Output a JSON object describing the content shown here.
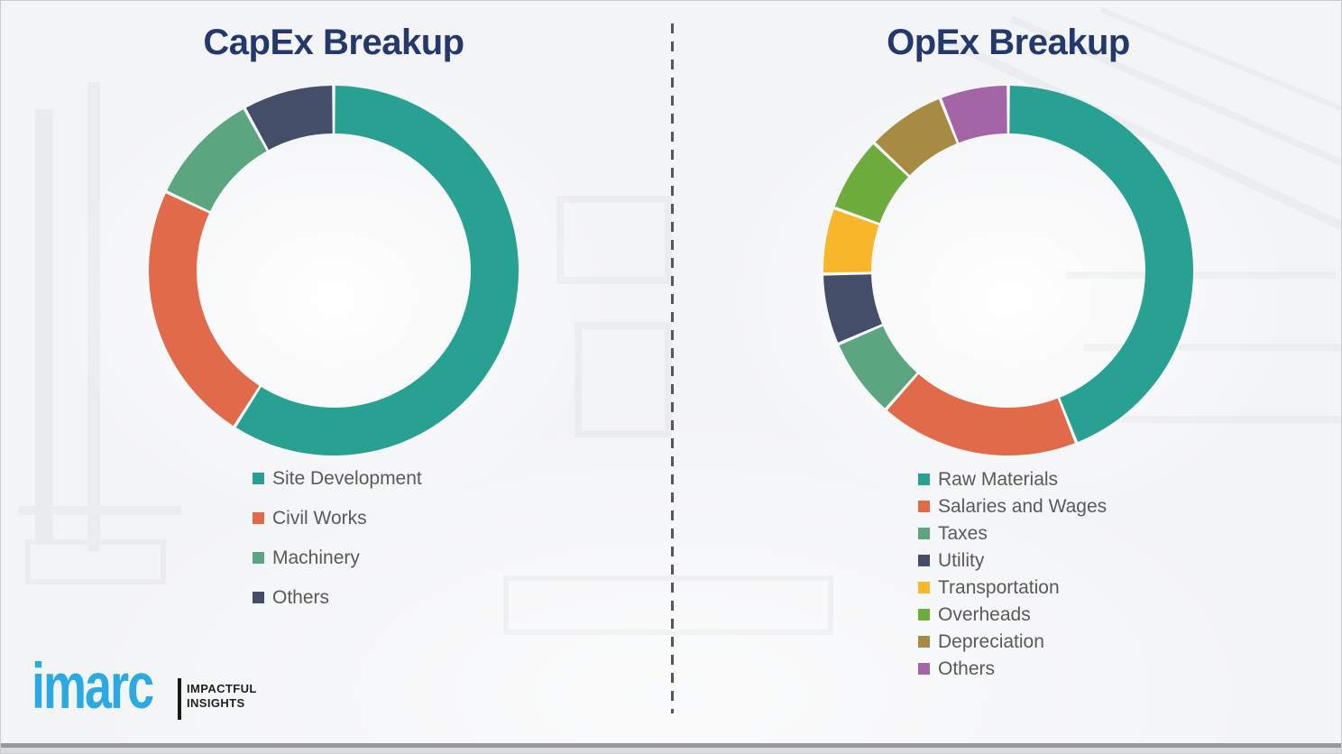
{
  "chart_data": [
    {
      "type": "pie",
      "subtype": "donut",
      "title": "CapEx Breakup",
      "labels": [
        "Site Development",
        "Civil Works",
        "Machinery",
        "Others"
      ],
      "values": [
        59,
        23,
        10,
        8
      ],
      "unit": "percent-estimated-from-arc-angles",
      "colors": [
        "#29a192",
        "#e16a4a",
        "#5ba581",
        "#454e69"
      ],
      "start_angle": "12-oclock",
      "direction": "clockwise",
      "legend_position": "below-left"
    },
    {
      "type": "pie",
      "subtype": "donut",
      "title": "OpEx Breakup",
      "labels": [
        "Raw Materials",
        "Salaries and Wages",
        "Taxes",
        "Utility",
        "Transportation",
        "Overheads",
        "Depreciation",
        "Others"
      ],
      "values": [
        44,
        17.5,
        7,
        6.2,
        5.8,
        6.6,
        6.9,
        6
      ],
      "unit": "percent-estimated-from-arc-angles",
      "colors": [
        "#29a192",
        "#e16a4a",
        "#5ba581",
        "#454e69",
        "#f8b72a",
        "#6ead3d",
        "#a88b42",
        "#a465a7"
      ],
      "start_angle": "12-oclock",
      "direction": "clockwise",
      "legend_position": "below-left"
    }
  ],
  "logo": {
    "brand": "imarc",
    "tagline_line1": "IMPACTFUL",
    "tagline_line2": "INSIGHTS"
  }
}
